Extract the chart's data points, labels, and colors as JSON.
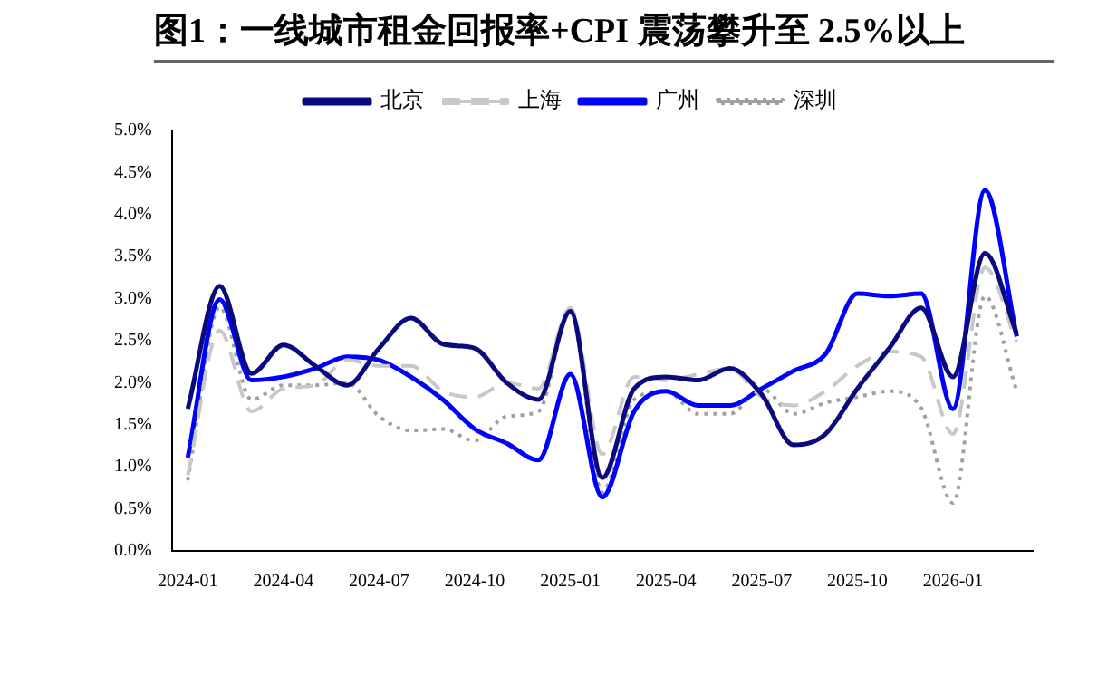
{
  "chart_data": {
    "type": "line",
    "title": "图1：一线城市租金回报率+CPI 震荡攀升至 2.5%以上",
    "categories": [
      "2024-01",
      null,
      null,
      "2024-04",
      null,
      null,
      "2024-07",
      null,
      null,
      "2024-10",
      null,
      null,
      "2025-01",
      null,
      null,
      "2025-04",
      null,
      null,
      "2025-07",
      null,
      null,
      "2025-10",
      null,
      null,
      "2026-01",
      null,
      null
    ],
    "series": [
      {
        "name": "北京",
        "color": "#0a0a7e",
        "line_style": "solid",
        "values": [
          1.69,
          3.15,
          2.11,
          2.45,
          2.2,
          1.97,
          2.41,
          2.77,
          2.46,
          2.41,
          2.0,
          1.8,
          2.85,
          0.87,
          1.93,
          2.07,
          2.03,
          2.17,
          1.86,
          1.26,
          1.39,
          1.93,
          2.41,
          2.89,
          2.07,
          3.54,
          2.58
        ]
      },
      {
        "name": "上海",
        "color": "#c8c8c8",
        "line_style": "dashed",
        "values": [
          0.9,
          2.62,
          1.66,
          1.93,
          1.97,
          2.27,
          2.2,
          2.2,
          1.9,
          1.83,
          2.0,
          1.93,
          2.89,
          1.15,
          2.07,
          2.03,
          2.1,
          2.17,
          1.83,
          1.73,
          1.9,
          2.2,
          2.37,
          2.31,
          1.39,
          3.37,
          2.48
        ]
      },
      {
        "name": "广州",
        "color": "#0000ff",
        "line_style": "solid",
        "values": [
          1.11,
          2.99,
          2.03,
          2.07,
          2.17,
          2.31,
          2.27,
          2.07,
          1.8,
          1.45,
          1.28,
          1.08,
          2.1,
          0.64,
          1.66,
          1.9,
          1.73,
          1.73,
          1.93,
          2.14,
          2.34,
          3.06,
          3.03,
          3.06,
          1.69,
          4.29,
          2.55
        ]
      },
      {
        "name": "深圳",
        "color": "#a0a0a0",
        "line_style": "dotted",
        "values": [
          0.84,
          2.9,
          1.8,
          1.97,
          1.97,
          2.0,
          1.6,
          1.43,
          1.45,
          1.31,
          1.6,
          1.66,
          2.85,
          0.7,
          1.8,
          1.9,
          1.63,
          1.63,
          1.93,
          1.63,
          1.76,
          1.83,
          1.9,
          1.7,
          0.57,
          3.03,
          1.9
        ]
      }
    ],
    "ylim": [
      0,
      5
    ],
    "yticks": [
      {
        "value": 0,
        "label": "0.0%"
      },
      {
        "value": 0.5,
        "label": "0.5%"
      },
      {
        "value": 1,
        "label": "1.0%"
      },
      {
        "value": 1.5,
        "label": "1.5%"
      },
      {
        "value": 2,
        "label": "2.0%"
      },
      {
        "value": 2.5,
        "label": "2.5%"
      },
      {
        "value": 3,
        "label": "3.0%"
      },
      {
        "value": 3.5,
        "label": "3.5%"
      },
      {
        "value": 4,
        "label": "4.0%"
      },
      {
        "value": 4.5,
        "label": "4.5%"
      },
      {
        "value": 5,
        "label": "5.0%"
      }
    ],
    "grid": false,
    "legend": "top",
    "marker": "none"
  }
}
